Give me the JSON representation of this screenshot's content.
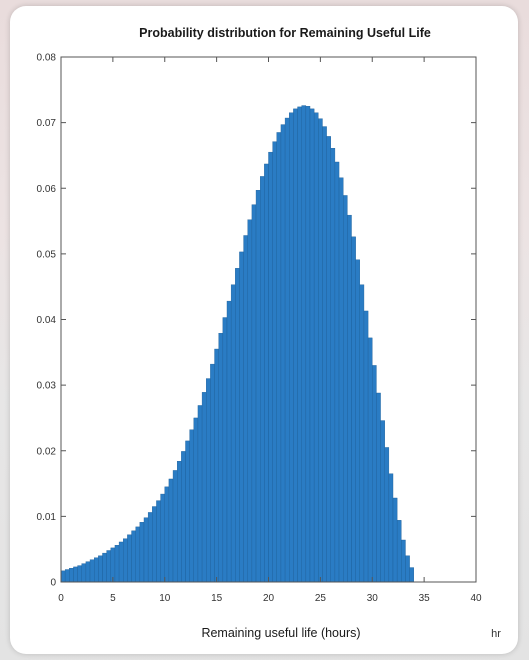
{
  "colors": {
    "bar": "#2a7cc4",
    "bar_edge": "#1d5f99",
    "axes": "#555555"
  },
  "chart_data": {
    "type": "bar",
    "title": "Probability distribution for Remaining Useful Life",
    "xlabel": "Remaining useful life (hours)",
    "x_unit": "hr",
    "ylabel": "",
    "xlim": [
      0,
      40
    ],
    "ylim": [
      0,
      0.08
    ],
    "xticks": [
      "0",
      "5",
      "10",
      "15",
      "20",
      "25",
      "30",
      "35",
      "40"
    ],
    "yticks": [
      "0",
      "0.01",
      "0.02",
      "0.03",
      "0.04",
      "0.05",
      "0.06",
      "0.07",
      "0.08"
    ],
    "grid": false,
    "bin_width": 0.4,
    "x": [
      0.2,
      0.6,
      1.0,
      1.4,
      1.8,
      2.2,
      2.6,
      3.0,
      3.4,
      3.8,
      4.2,
      4.6,
      5.0,
      5.4,
      5.8,
      6.2,
      6.6,
      7.0,
      7.4,
      7.8,
      8.2,
      8.6,
      9.0,
      9.4,
      9.8,
      10.2,
      10.6,
      11.0,
      11.4,
      11.8,
      12.2,
      12.6,
      13.0,
      13.4,
      13.8,
      14.2,
      14.6,
      15.0,
      15.4,
      15.8,
      16.2,
      16.6,
      17.0,
      17.4,
      17.8,
      18.2,
      18.6,
      19.0,
      19.4,
      19.8,
      20.2,
      20.6,
      21.0,
      21.4,
      21.8,
      22.2,
      22.6,
      23.0,
      23.4,
      23.8,
      24.2,
      24.6,
      25.0,
      25.4,
      25.8,
      26.2,
      26.6,
      27.0,
      27.4,
      27.8,
      28.2,
      28.6,
      29.0,
      29.4,
      29.8,
      30.2,
      30.6,
      31.0,
      31.4,
      31.8,
      32.2,
      32.6,
      33.0,
      33.4,
      33.8
    ],
    "values": [
      0.0017,
      0.0019,
      0.0021,
      0.0023,
      0.0025,
      0.0028,
      0.0031,
      0.0034,
      0.0037,
      0.004,
      0.0044,
      0.0048,
      0.0052,
      0.0056,
      0.0061,
      0.0066,
      0.0072,
      0.0078,
      0.0084,
      0.0091,
      0.0098,
      0.0106,
      0.0115,
      0.0124,
      0.0134,
      0.0145,
      0.0157,
      0.017,
      0.0184,
      0.0199,
      0.0215,
      0.0232,
      0.025,
      0.0269,
      0.0289,
      0.031,
      0.0332,
      0.0355,
      0.0379,
      0.0403,
      0.0428,
      0.0453,
      0.0478,
      0.0503,
      0.0528,
      0.0552,
      0.0575,
      0.0597,
      0.0618,
      0.0637,
      0.0655,
      0.0671,
      0.0685,
      0.0697,
      0.0707,
      0.0715,
      0.0721,
      0.0724,
      0.0726,
      0.0725,
      0.0721,
      0.0715,
      0.0706,
      0.0694,
      0.0679,
      0.0661,
      0.064,
      0.0616,
      0.0589,
      0.0559,
      0.0526,
      0.0491,
      0.0453,
      0.0413,
      0.0372,
      0.033,
      0.0288,
      0.0246,
      0.0205,
      0.0165,
      0.0128,
      0.0094,
      0.0064,
      0.004,
      0.0022
    ]
  }
}
